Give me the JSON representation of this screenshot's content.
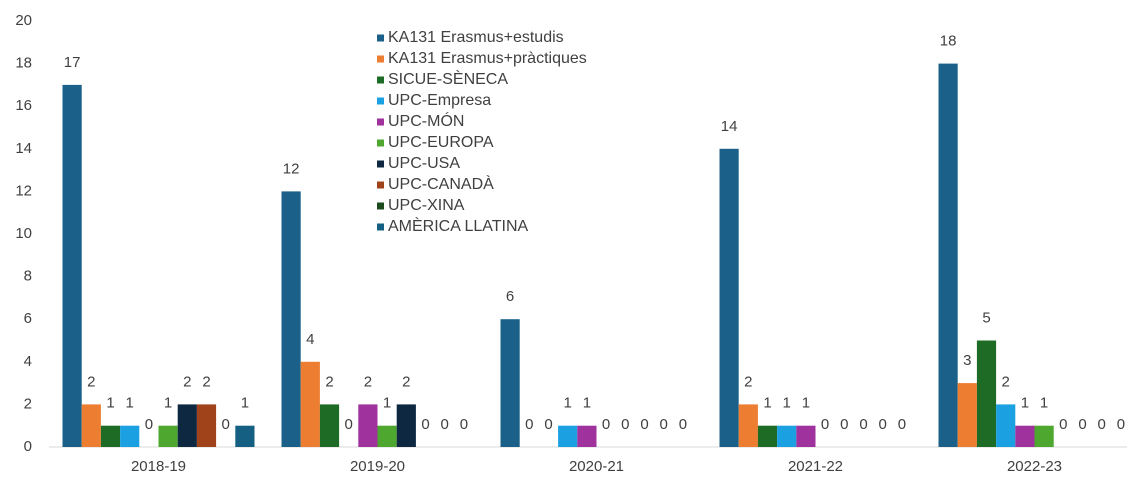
{
  "chart_data": {
    "type": "bar",
    "categories": [
      "2018-19",
      "2019-20",
      "2020-21",
      "2021-22",
      "2022-23"
    ],
    "series": [
      {
        "name": "KA131 Erasmus+estudis",
        "color": "#1a6088",
        "values": [
          17,
          12,
          6,
          14,
          18
        ]
      },
      {
        "name": "KA131 Erasmus+pràctiques",
        "color": "#ed7d31",
        "values": [
          2,
          4,
          0,
          2,
          3
        ]
      },
      {
        "name": "SICUE-SÈNECA",
        "color": "#1e6b26",
        "values": [
          1,
          2,
          0,
          1,
          5
        ]
      },
      {
        "name": "UPC-Empresa",
        "color": "#1ba1e2",
        "values": [
          1,
          0,
          1,
          1,
          2
        ]
      },
      {
        "name": "UPC-MÓN",
        "color": "#a0329e",
        "values": [
          0,
          2,
          1,
          1,
          1
        ]
      },
      {
        "name": "UPC-EUROPA",
        "color": "#4ea72e",
        "values": [
          1,
          1,
          0,
          0,
          1
        ]
      },
      {
        "name": "UPC-USA",
        "color": "#0e2841",
        "values": [
          2,
          2,
          0,
          0,
          0
        ]
      },
      {
        "name": "UPC-CANADÀ",
        "color": "#a0431b",
        "values": [
          2,
          0,
          0,
          0,
          0
        ]
      },
      {
        "name": "UPC-XINA",
        "color": "#1a4a1e",
        "values": [
          0,
          0,
          0,
          0,
          0
        ]
      },
      {
        "name": "AMÈRICA LLATINA",
        "color": "#156082",
        "values": [
          1,
          0,
          0,
          0,
          0
        ]
      }
    ],
    "ylim": [
      0,
      20
    ],
    "yticks": [
      0,
      2,
      4,
      6,
      8,
      10,
      12,
      14,
      16,
      18,
      20
    ],
    "grid": false
  }
}
